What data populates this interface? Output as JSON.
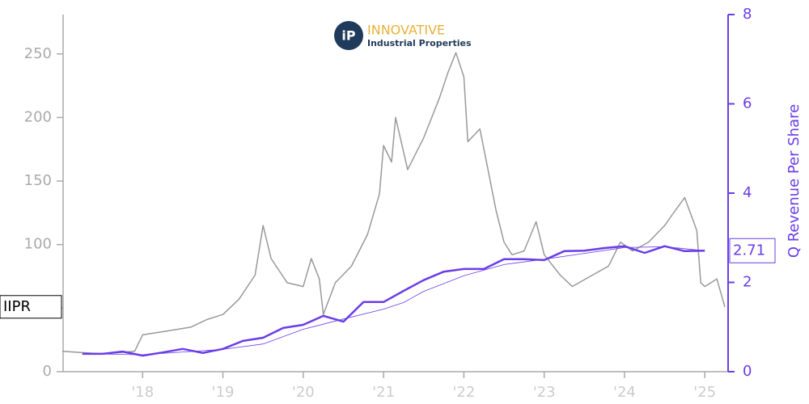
{
  "chart_data": {
    "type": "line",
    "logo": {
      "mark": "iP",
      "title": "INNOVATIVE",
      "subtitle": "Industrial Properties"
    },
    "y2label": "Q Revenue Per Share",
    "xlim": [
      2017.01,
      2025.29
    ],
    "xticks": [
      {
        "value": 2018,
        "label": "'18"
      },
      {
        "value": 2019,
        "label": "'19"
      },
      {
        "value": 2020,
        "label": "'20"
      },
      {
        "value": 2021,
        "label": "'21"
      },
      {
        "value": 2022,
        "label": "'22"
      },
      {
        "value": 2023,
        "label": "'23"
      },
      {
        "value": 2024,
        "label": "'24"
      },
      {
        "value": 2025,
        "label": "'25"
      }
    ],
    "ylim": [
      0,
      281
    ],
    "yticks": [
      0,
      50,
      100,
      150,
      200,
      250
    ],
    "y2lim": [
      0,
      8
    ],
    "y2ticks": [
      0,
      2,
      4,
      6,
      8
    ],
    "series": [
      {
        "name": "IIPR",
        "color": "#999999",
        "width": 1.5,
        "axis": "y",
        "x": [
          2017.0,
          2017.5,
          2017.9,
          2018.0,
          2018.3,
          2018.6,
          2018.8,
          2019.0,
          2019.2,
          2019.4,
          2019.5,
          2019.6,
          2019.8,
          2020.0,
          2020.1,
          2020.2,
          2020.25,
          2020.4,
          2020.6,
          2020.8,
          2020.95,
          2021.0,
          2021.1,
          2021.15,
          2021.3,
          2021.5,
          2021.7,
          2021.8,
          2021.9,
          2022.0,
          2022.05,
          2022.2,
          2022.3,
          2022.4,
          2022.5,
          2022.6,
          2022.75,
          2022.9,
          2023.0,
          2023.2,
          2023.35,
          2023.6,
          2023.8,
          2023.95,
          2024.1,
          2024.3,
          2024.5,
          2024.6,
          2024.75,
          2024.9,
          2024.95,
          2025.0,
          2025.15,
          2025.25
        ],
        "values": [
          16,
          14,
          16,
          29,
          32,
          35,
          41,
          45,
          57,
          76,
          115,
          89,
          70,
          67,
          89,
          73,
          45,
          70,
          83,
          108,
          140,
          178,
          165,
          200,
          159,
          184,
          216,
          235,
          251,
          232,
          181,
          191,
          159,
          127,
          102,
          92,
          95,
          118,
          92,
          76,
          67,
          76,
          83,
          102,
          95,
          102,
          115,
          124,
          137,
          111,
          70,
          67,
          73,
          51
        ]
      },
      {
        "color": "#6a3de8",
        "width": 2.5,
        "axis": "y2",
        "x": [
          2017.25,
          2017.5,
          2017.75,
          2018.0,
          2018.25,
          2018.5,
          2018.75,
          2019.0,
          2019.25,
          2019.5,
          2019.75,
          2020.0,
          2020.25,
          2020.5,
          2020.75,
          2021.0,
          2021.25,
          2021.5,
          2021.75,
          2022.0,
          2022.25,
          2022.5,
          2022.75,
          2023.0,
          2023.25,
          2023.5,
          2023.75,
          2024.0,
          2024.25,
          2024.5,
          2024.75,
          2025.0
        ],
        "values": [
          0.4,
          0.4,
          0.45,
          0.36,
          0.43,
          0.51,
          0.42,
          0.51,
          0.69,
          0.76,
          0.98,
          1.05,
          1.25,
          1.12,
          1.56,
          1.56,
          1.81,
          2.05,
          2.24,
          2.3,
          2.3,
          2.52,
          2.52,
          2.5,
          2.7,
          2.71,
          2.77,
          2.81,
          2.66,
          2.81,
          2.7,
          2.71
        ]
      },
      {
        "color": "#6a3de8",
        "width": 0.8,
        "axis": "y2",
        "x": [
          2017.25,
          2018.0,
          2019.0,
          2019.5,
          2020.0,
          2020.5,
          2021.0,
          2021.25,
          2021.5,
          2022.0,
          2022.5,
          2023.0,
          2023.5,
          2024.0,
          2024.5,
          2025.0
        ],
        "values": [
          0.4,
          0.38,
          0.5,
          0.62,
          0.95,
          1.18,
          1.4,
          1.55,
          1.8,
          2.15,
          2.4,
          2.52,
          2.65,
          2.78,
          2.8,
          2.71
        ]
      }
    ],
    "left_axis_color": "#aaaaaa",
    "right_axis_color": "#6a3de8"
  }
}
